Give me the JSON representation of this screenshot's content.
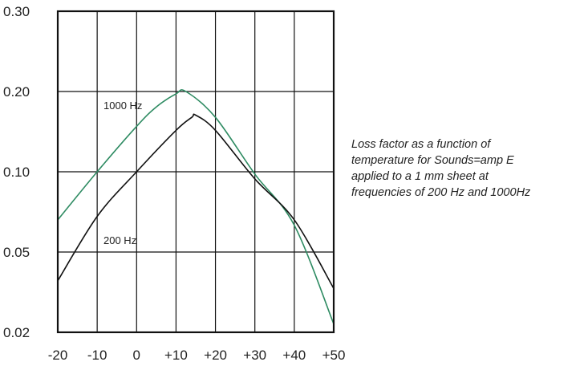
{
  "chart_data": {
    "type": "line",
    "title": "",
    "xlabel": "",
    "ylabel": "",
    "xlim": [
      -20,
      50
    ],
    "ylim_levels": [
      0.02,
      0.3
    ],
    "x_ticks": [
      "-20",
      "-10",
      "0",
      "+10",
      "+20",
      "+30",
      "+40",
      "+50"
    ],
    "y_ticks": [
      "0.30",
      "0.20",
      "0.10",
      "0.05",
      "0.02"
    ],
    "grid": true,
    "series": [
      {
        "name": "1000 Hz",
        "color": "#2e8b62",
        "points": [
          [
            -20,
            0.066
          ],
          [
            -10,
            0.1
          ],
          [
            0,
            0.148
          ],
          [
            5,
            0.175
          ],
          [
            10,
            0.196
          ],
          [
            12.5,
            0.2
          ],
          [
            20,
            0.16
          ],
          [
            30,
            0.098
          ],
          [
            40,
            0.063
          ],
          [
            50,
            0.022
          ]
        ]
      },
      {
        "name": "200 Hz",
        "color": "#111111",
        "points": [
          [
            -20,
            0.036
          ],
          [
            -10,
            0.068
          ],
          [
            0,
            0.1
          ],
          [
            10,
            0.143
          ],
          [
            14,
            0.16
          ],
          [
            15,
            0.163
          ],
          [
            20,
            0.143
          ],
          [
            30,
            0.094
          ],
          [
            40,
            0.066
          ],
          [
            50,
            0.033
          ]
        ]
      }
    ]
  },
  "caption": {
    "lines": [
      "Loss factor as a function of",
      "temperature for Sounds=amp E",
      "applied to a 1 mm sheet at",
      "frequencies of 200 Hz and 1000Hz"
    ]
  }
}
